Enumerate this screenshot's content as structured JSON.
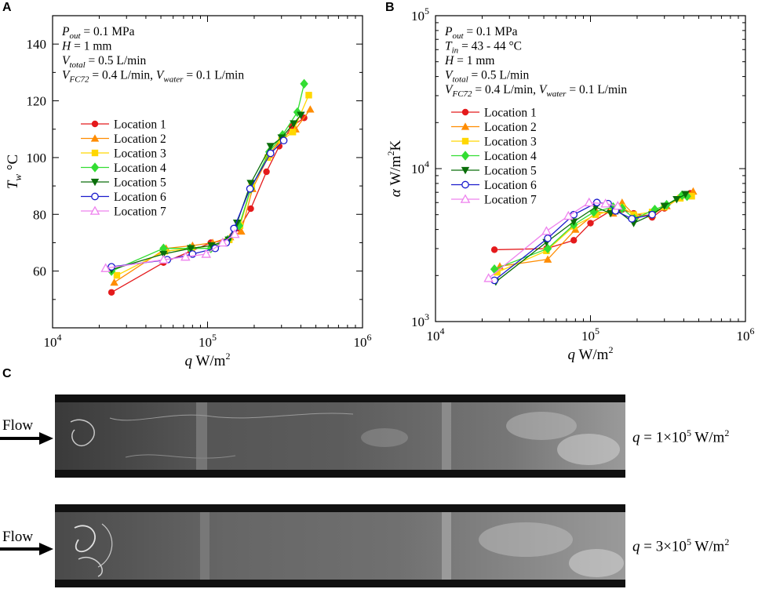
{
  "panels": {
    "a": "A",
    "b": "B",
    "c": "C"
  },
  "colors": {
    "Location 1": "#e41a1c",
    "Location 2": "#ff8c00",
    "Location 3": "#ffd700",
    "Location 4": "#33dd33",
    "Location 5": "#0a6e0a",
    "Location 6": "#1a1acc",
    "Location 7": "#ee82ee"
  },
  "markers": {
    "Location 1": "circle",
    "Location 2": "triangle-up",
    "Location 3": "square",
    "Location 4": "diamond",
    "Location 5": "triangle-down",
    "Location 6": "open-circle",
    "Location 7": "open-triangle-up"
  },
  "chart_data": [
    {
      "id": "A",
      "type": "line",
      "xscale": "log",
      "xlim": [
        10000,
        1000000
      ],
      "ylim": [
        40,
        150
      ],
      "xticks": [
        {
          "v": 10000,
          "b": "10",
          "e": "4"
        },
        {
          "v": 100000,
          "b": "10",
          "e": "5"
        },
        {
          "v": 1000000,
          "b": "10",
          "e": "6"
        }
      ],
      "yticks": [
        60,
        80,
        100,
        120,
        140
      ],
      "xlabel": {
        "var": "q",
        "unit": "W/m",
        "sup": "2"
      },
      "ylabel": {
        "var": "T",
        "sub": "w",
        "unit": "°C"
      },
      "annotations": [
        [
          {
            "t": "P",
            "i": true
          },
          {
            "t": "out",
            "i": true,
            "sub": true
          },
          {
            "t": " = 0.1 MPa"
          }
        ],
        [
          {
            "t": "H",
            "i": true
          },
          {
            "t": " = 1 mm"
          }
        ],
        [
          {
            "t": "V",
            "i": true
          },
          {
            "t": "total",
            "i": true,
            "sub": true
          },
          {
            "t": " = 0.5 L/min"
          }
        ],
        [
          {
            "t": "V",
            "i": true
          },
          {
            "t": "FC72",
            "i": true,
            "sub": true
          },
          {
            "t": " = 0.4 L/min,  "
          },
          {
            "t": "V",
            "i": true
          },
          {
            "t": "water",
            "i": true,
            "sub": true
          },
          {
            "t": " = 0.1 L/min"
          }
        ]
      ],
      "legend_position": "center-left",
      "series": [
        {
          "name": "Location 1",
          "x": [
            24000,
            52000,
            78000,
            105000,
            135000,
            160000,
            190000,
            240000,
            290000,
            350000,
            420000
          ],
          "y": [
            52.5,
            63,
            67,
            70,
            71,
            75,
            82,
            95,
            104,
            111,
            114
          ]
        },
        {
          "name": "Location 2",
          "x": [
            25000,
            54000,
            80000,
            108000,
            140000,
            165000,
            195000,
            250000,
            300000,
            370000,
            460000
          ],
          "y": [
            56,
            68,
            69,
            70,
            72,
            74,
            89,
            101,
            107,
            110,
            117
          ]
        },
        {
          "name": "Location 3",
          "x": [
            26000,
            53000,
            79000,
            107000,
            138000,
            162000,
            193000,
            245000,
            300000,
            355000,
            450000
          ],
          "y": [
            58.5,
            67,
            68,
            69,
            71,
            76,
            90,
            100,
            106,
            109,
            122
          ]
        },
        {
          "name": "Location 4",
          "x": [
            24000,
            52000,
            77000,
            105000,
            135000,
            160000,
            190000,
            250000,
            305000,
            380000,
            420000
          ],
          "y": [
            60,
            68,
            68,
            68,
            71,
            76,
            89,
            102,
            108,
            116,
            126
          ]
        },
        {
          "name": "Location 5",
          "x": [
            24000,
            52000,
            78000,
            106000,
            137000,
            155000,
            190000,
            255000,
            300000,
            360000,
            400000
          ],
          "y": [
            60.5,
            66,
            68,
            69,
            71,
            77,
            91,
            104,
            107,
            112,
            115
          ]
        },
        {
          "name": "Location 6",
          "x": [
            24000,
            55000,
            80000,
            112000,
            132000,
            148000,
            188000,
            255000,
            310000
          ],
          "y": [
            61.5,
            64,
            66,
            68,
            70,
            75,
            89,
            101.5,
            106
          ]
        },
        {
          "name": "Location 7",
          "x": [
            22000,
            52000,
            72000,
            98000,
            125000,
            150000
          ],
          "y": [
            61,
            64,
            65,
            66,
            70,
            73
          ]
        }
      ]
    },
    {
      "id": "B",
      "type": "line",
      "xscale": "log",
      "yscale": "log",
      "xlim": [
        10000,
        1000000
      ],
      "ylim": [
        1000,
        100000
      ],
      "xticks": [
        {
          "v": 10000,
          "b": "10",
          "e": "4"
        },
        {
          "v": 100000,
          "b": "10",
          "e": "5"
        },
        {
          "v": 1000000,
          "b": "10",
          "e": "6"
        }
      ],
      "yticks": [
        {
          "v": 1000,
          "b": "10",
          "e": "3"
        },
        {
          "v": 10000,
          "b": "10",
          "e": "4"
        },
        {
          "v": 100000,
          "b": "10",
          "e": "5"
        }
      ],
      "xlabel": {
        "var": "q",
        "unit": "W/m",
        "sup": "2"
      },
      "ylabel": {
        "var": "α",
        "unit": "W/m",
        "sup": "2",
        "tail": "K"
      },
      "annotations": [
        [
          {
            "t": "P",
            "i": true
          },
          {
            "t": "out",
            "i": true,
            "sub": true
          },
          {
            "t": " = 0.1 MPa"
          }
        ],
        [
          {
            "t": "T",
            "i": true
          },
          {
            "t": "in",
            "i": true,
            "sub": true
          },
          {
            "t": " = 43 - 44 °C"
          }
        ],
        [
          {
            "t": "H",
            "i": true
          },
          {
            "t": " = 1 mm"
          }
        ],
        [
          {
            "t": "V",
            "i": true
          },
          {
            "t": "total",
            "i": true,
            "sub": true
          },
          {
            "t": " = 0.5 L/min"
          }
        ],
        [
          {
            "t": "V",
            "i": true
          },
          {
            "t": "FC72",
            "i": true,
            "sub": true
          },
          {
            "t": " = 0.4 L/min,  "
          },
          {
            "t": "V",
            "i": true
          },
          {
            "t": "water",
            "i": true,
            "sub": true
          },
          {
            "t": " = 0.1 L/min"
          }
        ]
      ],
      "legend_position": "center-left",
      "series": [
        {
          "name": "Location 1",
          "x": [
            24000,
            52000,
            78000,
            100000,
            135000,
            160000,
            190000,
            250000,
            300000,
            380000,
            440000
          ],
          "y": [
            2950,
            3000,
            3400,
            4400,
            5300,
            5400,
            5100,
            4800,
            5500,
            6500,
            6900
          ]
        },
        {
          "name": "Location 2",
          "x": [
            26000,
            53000,
            80000,
            110000,
            140000,
            160000,
            195000,
            250000,
            310000,
            400000,
            460000
          ],
          "y": [
            2300,
            2550,
            4000,
            5200,
            5100,
            6000,
            4900,
            5000,
            5700,
            6700,
            7100
          ]
        },
        {
          "name": "Location 3",
          "x": [
            25000,
            52000,
            78000,
            108000,
            138000,
            160000,
            190000,
            250000,
            300000,
            380000,
            450000
          ],
          "y": [
            2100,
            2900,
            4200,
            5000,
            5300,
            5600,
            5000,
            5200,
            5600,
            6400,
            6600
          ]
        },
        {
          "name": "Location 4",
          "x": [
            24000,
            53000,
            78000,
            105000,
            140000,
            160000,
            192000,
            260000,
            310000,
            390000,
            420000
          ],
          "y": [
            2200,
            3000,
            4300,
            5200,
            5600,
            5500,
            4700,
            5400,
            5800,
            6700,
            6600
          ]
        },
        {
          "name": "Location 5",
          "x": [
            24500,
            52000,
            78000,
            108000,
            135000,
            150000,
            190000,
            250000,
            300000,
            360000,
            410000
          ],
          "y": [
            1820,
            3300,
            4500,
            5600,
            5100,
            5300,
            4400,
            5000,
            5700,
            6300,
            6800
          ]
        },
        {
          "name": "Location 6",
          "x": [
            24000,
            53000,
            78000,
            110000,
            130000,
            145000,
            185000,
            250000
          ],
          "y": [
            1860,
            3500,
            5000,
            6000,
            5900,
            5300,
            4700,
            5000
          ]
        },
        {
          "name": "Location 7",
          "x": [
            22000,
            52000,
            72000,
            98000,
            125000,
            150000
          ],
          "y": [
            1920,
            3900,
            4900,
            6000,
            5900,
            5700
          ]
        }
      ]
    }
  ],
  "photos": {
    "flow_label": "Flow",
    "top": {
      "var": "q",
      "text": " = 1×10",
      "exp": "5",
      "unit": " W/m",
      "unit_exp": "2"
    },
    "bottom": {
      "var": "q",
      "text": " = 3×10",
      "exp": "5",
      "unit": " W/m",
      "unit_exp": "2"
    }
  }
}
